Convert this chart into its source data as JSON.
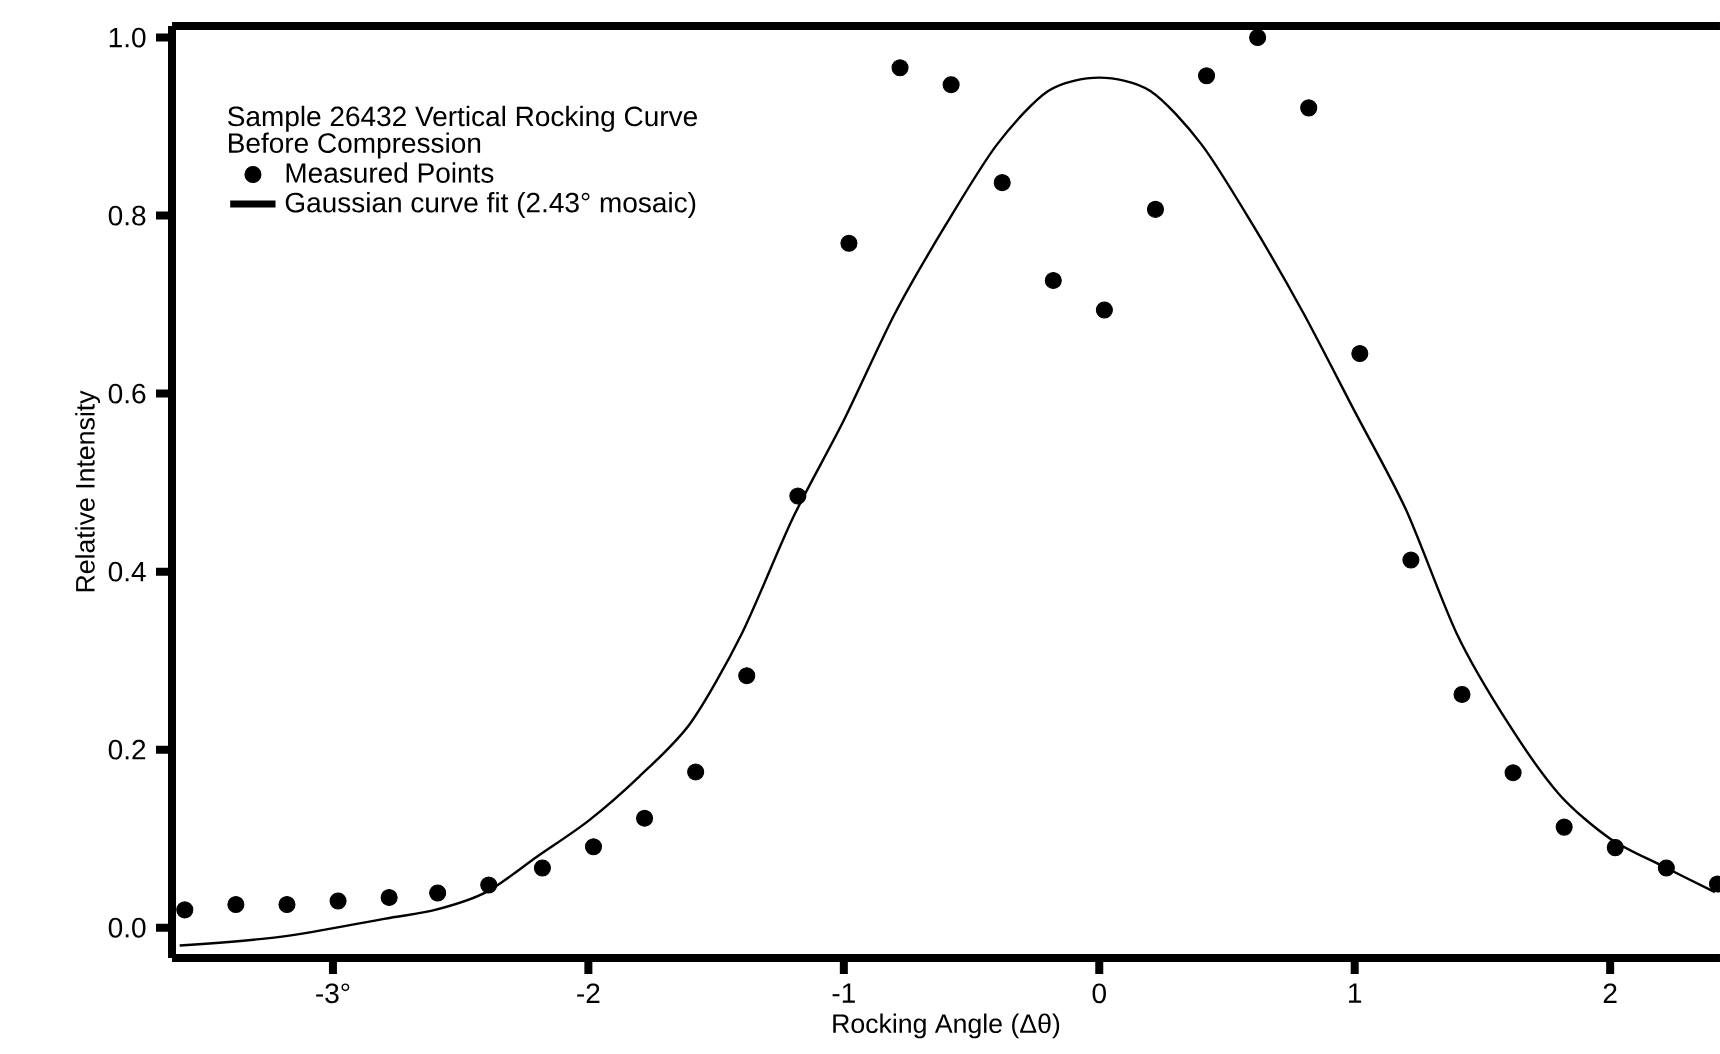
{
  "chart_data": {
    "type": "scatter",
    "title": "Sample 26432 Vertical Rocking Curve",
    "subtitle": "Before Compression",
    "xlabel": "Rocking Angle (Δθ)",
    "ylabel": "Relative Intensity",
    "xlim": [
      -3.63,
      2.43
    ],
    "ylim": [
      -0.034,
      1.013
    ],
    "xticks": [
      {
        "value": -3,
        "label": "-3°"
      },
      -2,
      -1,
      0,
      1,
      2
    ],
    "yticks": [
      {
        "value": 0,
        "label": "0.0"
      },
      {
        "value": 0.2,
        "label": "0.2"
      },
      {
        "value": 0.4,
        "label": "0.4"
      },
      {
        "value": 0.6,
        "label": "0.6"
      },
      {
        "value": 0.8,
        "label": "0.8"
      },
      {
        "value": 1,
        "label": "1.0"
      }
    ],
    "grid": false,
    "legend": "top left",
    "series": [
      {
        "name": "Measured Points",
        "color": "#000000",
        "marker": "circle",
        "x": [
          -3.58,
          -3.38,
          -3.18,
          -2.98,
          -2.78,
          -2.59,
          -2.39,
          -2.18,
          -1.98,
          -1.78,
          -1.58,
          -1.38,
          -1.18,
          -0.98,
          -0.78,
          -0.58,
          -0.38,
          -0.18,
          0.02,
          0.22,
          0.42,
          0.62,
          0.82,
          1.02,
          1.22,
          1.42,
          1.62,
          1.82,
          2.02,
          2.22,
          2.42
        ],
        "values": [
          0.02,
          0.026,
          0.026,
          0.03,
          0.034,
          0.039,
          0.048,
          0.067,
          0.091,
          0.123,
          0.175,
          0.283,
          0.485,
          0.769,
          0.966,
          0.947,
          0.837,
          0.727,
          0.694,
          0.807,
          0.957,
          1.0,
          0.921,
          0.645,
          0.413,
          0.262,
          0.174,
          0.113,
          0.09,
          0.067,
          0.049
        ]
      },
      {
        "name": "Gaussian curve fit  (2.43° mosaic)",
        "type": "line",
        "color": "#000000",
        "marker": "none",
        "line_style": "solid",
        "x": [
          -3.6,
          -3.2,
          -2.8,
          -2.6,
          -2.4,
          -2.2,
          -2.0,
          -1.8,
          -1.6,
          -1.4,
          -1.2,
          -1.0,
          -0.8,
          -0.6,
          -0.4,
          -0.2,
          0,
          0.2,
          0.4,
          0.6,
          0.8,
          1.0,
          1.2,
          1.4,
          1.6,
          1.8,
          2.0,
          2.2,
          2.41
        ],
        "values": [
          -0.02,
          -0.01,
          0.01,
          0.02,
          0.04,
          0.08,
          0.12,
          0.17,
          0.23,
          0.33,
          0.46,
          0.57,
          0.69,
          0.79,
          0.88,
          0.94,
          0.955,
          0.94,
          0.88,
          0.79,
          0.69,
          0.58,
          0.47,
          0.33,
          0.23,
          0.15,
          0.1,
          0.07,
          0.04
        ]
      }
    ]
  }
}
